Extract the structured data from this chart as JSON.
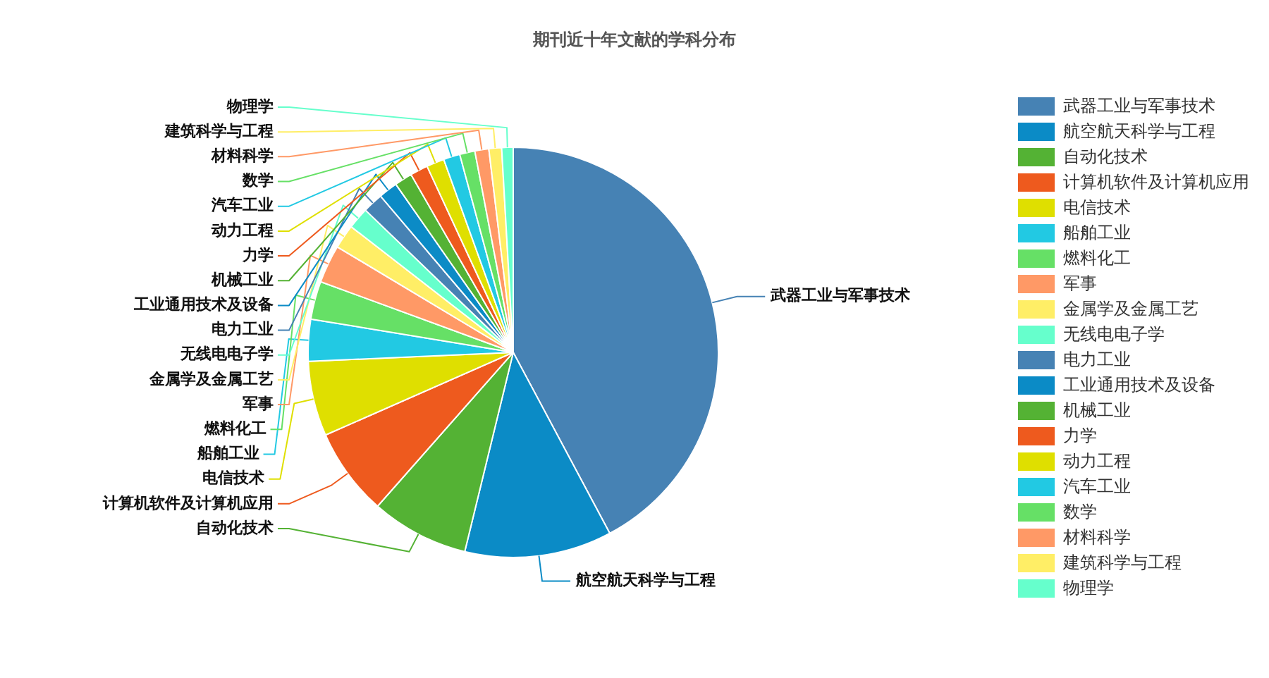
{
  "chart_data": {
    "type": "pie",
    "title": "期刊近十年文献的学科分布",
    "categories": [
      "武器工业与军事技术",
      "航空航天科学与工程",
      "自动化技术",
      "计算机软件及计算机应用",
      "电信技术",
      "船舶工业",
      "燃料化工",
      "军事",
      "金属学及金属工艺",
      "无线电电子学",
      "电力工业",
      "工业通用技术及设备",
      "机械工业",
      "力学",
      "动力工程",
      "汽车工业",
      "数学",
      "材料科学",
      "建筑科学与工程",
      "物理学"
    ],
    "values": [
      42.2,
      11.6,
      7.7,
      6.9,
      5.9,
      3.3,
      3.0,
      3.0,
      1.9,
      1.7,
      1.6,
      1.5,
      1.4,
      1.4,
      1.4,
      1.3,
      1.2,
      1.1,
      1.0,
      0.9
    ],
    "colors": [
      "#4682b4",
      "#0b8bc6",
      "#54b234",
      "#ee5a1e",
      "#dfdf00",
      "#22c9e3",
      "#66e066",
      "#ff9966",
      "#ffee66",
      "#66ffcc",
      "#4682b4",
      "#0b8bc6",
      "#54b234",
      "#ee5a1e",
      "#dfdf00",
      "#22c9e3",
      "#66e066",
      "#ff9966",
      "#ffee66",
      "#66ffcc"
    ],
    "legend": "right"
  }
}
